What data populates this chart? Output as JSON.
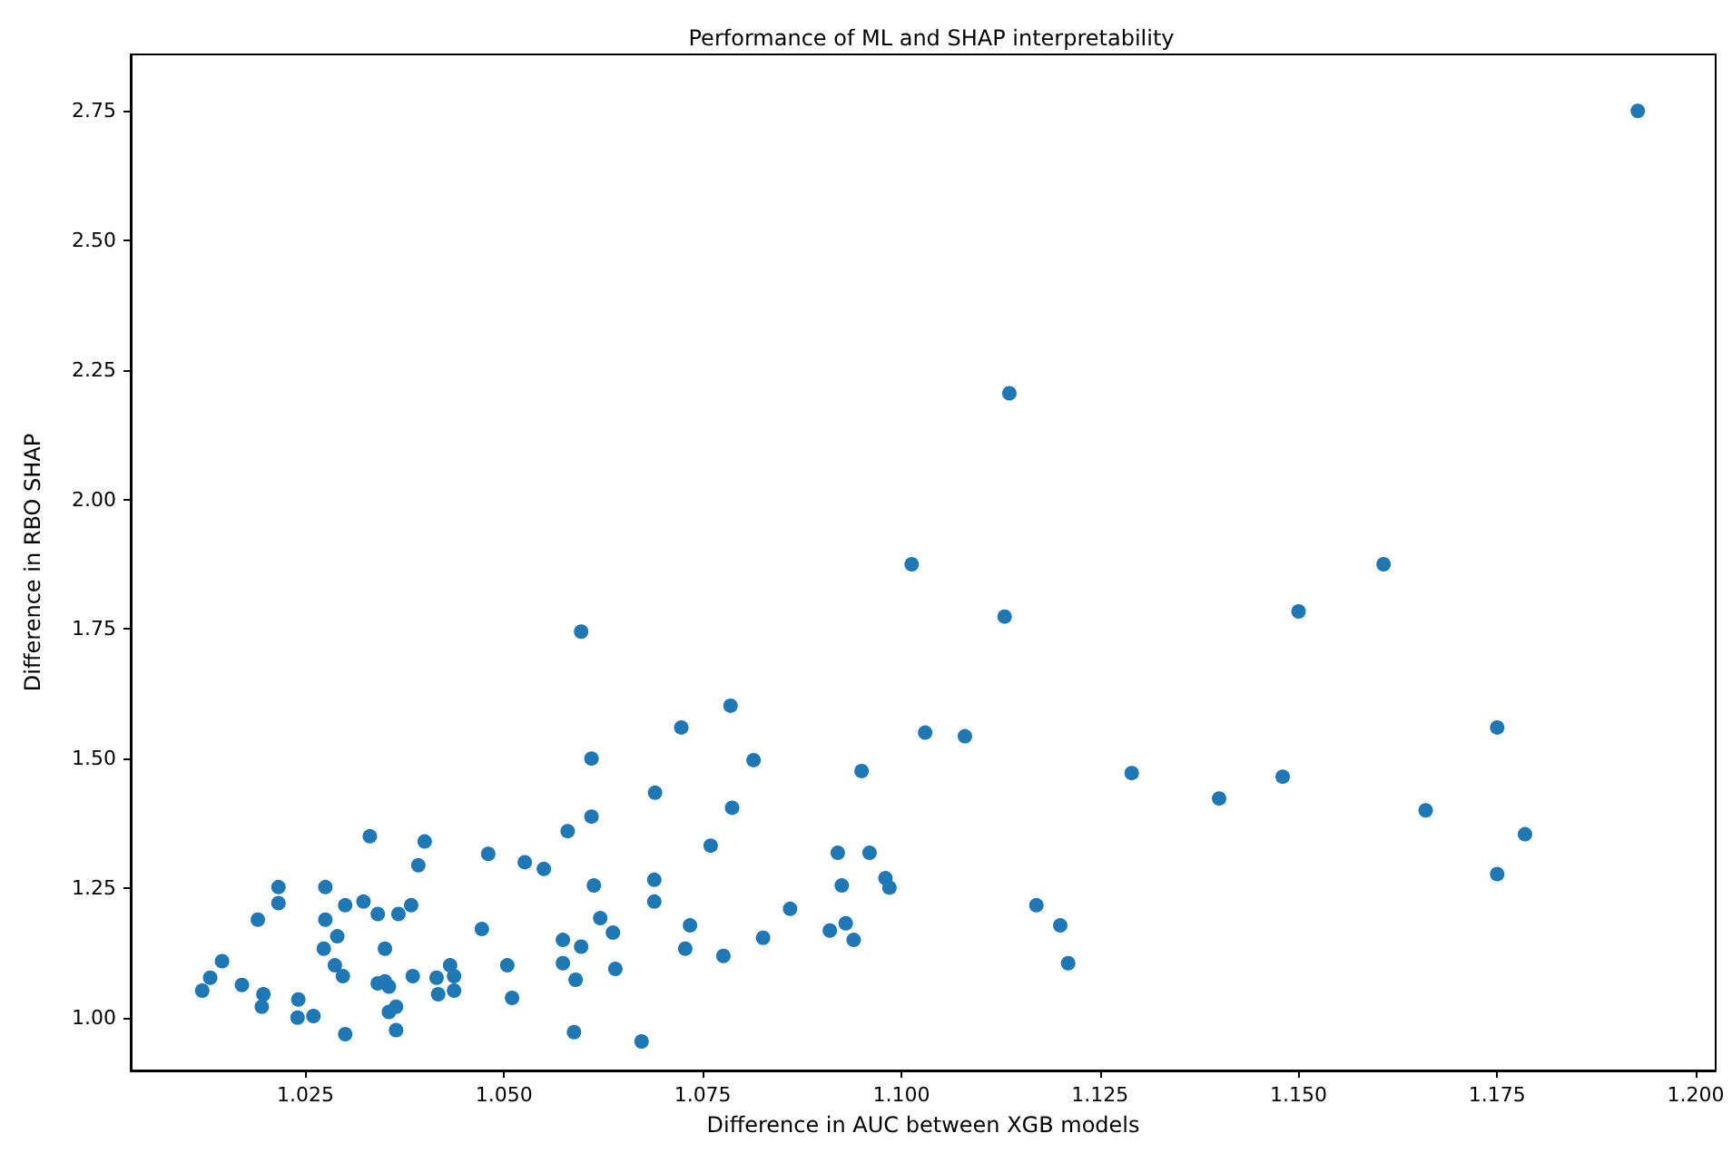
{
  "chart_data": {
    "type": "scatter",
    "title": "Performance of ML and SHAP interpretability",
    "xlabel": "Difference in AUC between XGB models",
    "ylabel": "Difference in RBO SHAP",
    "x": [
      1.012,
      1.013,
      1.0145,
      1.017,
      1.019,
      1.0197,
      1.0195,
      1.0216,
      1.0216,
      1.0241,
      1.024,
      1.026,
      1.0275,
      1.0275,
      1.029,
      1.0273,
      1.0287,
      1.0297,
      1.03,
      1.03,
      1.0323,
      1.0331,
      1.0341,
      1.0367,
      1.0383,
      1.035,
      1.0341,
      1.035,
      1.0355,
      1.0355,
      1.0364,
      1.0364,
      1.0385,
      1.0392,
      1.04,
      1.0415,
      1.0417,
      1.0432,
      1.0437,
      1.0437,
      1.0597,
      1.0723,
      1.0785,
      1.061,
      1.0814,
      1.069,
      1.0787,
      1.061,
      1.058,
      1.076,
      1.048,
      1.0526,
      1.055,
      1.0613,
      1.0689,
      1.0689,
      1.0621,
      1.0637,
      1.0472,
      1.0574,
      1.0597,
      1.0734,
      1.0728,
      1.0776,
      1.0826,
      1.086,
      1.0504,
      1.0574,
      1.059,
      1.064,
      1.051,
      1.0588,
      1.0673,
      1.1013,
      1.113,
      1.1607,
      1.15,
      1.103,
      1.108,
      1.095,
      1.129,
      1.14,
      1.148,
      1.175,
      1.166,
      1.1785,
      1.175,
      1.092,
      1.096,
      1.0925,
      1.098,
      1.0985,
      1.091,
      1.093,
      1.094,
      1.117,
      1.12,
      1.121,
      1.1136,
      1.1927
    ],
    "values": [
      1.052,
      1.077,
      1.109,
      1.063,
      1.189,
      1.045,
      1.021,
      1.252,
      1.221,
      1.035,
      1.0,
      1.003,
      1.252,
      1.189,
      1.157,
      1.133,
      1.101,
      1.08,
      0.968,
      1.217,
      1.224,
      1.35,
      1.2,
      1.2,
      1.217,
      1.133,
      1.066,
      1.07,
      1.06,
      1.011,
      1.021,
      0.976,
      1.08,
      1.294,
      1.34,
      1.077,
      1.045,
      1.101,
      1.08,
      1.052,
      1.745,
      1.56,
      1.602,
      1.5,
      1.497,
      1.434,
      1.405,
      1.388,
      1.36,
      1.332,
      1.316,
      1.3,
      1.287,
      1.255,
      1.266,
      1.224,
      1.192,
      1.164,
      1.171,
      1.15,
      1.137,
      1.178,
      1.133,
      1.119,
      1.154,
      1.21,
      1.101,
      1.105,
      1.073,
      1.094,
      1.038,
      0.972,
      0.954,
      1.875,
      1.774,
      1.875,
      1.784,
      1.55,
      1.543,
      1.476,
      1.472,
      1.423,
      1.465,
      1.56,
      1.4,
      1.354,
      1.277,
      1.318,
      1.318,
      1.255,
      1.269,
      1.251,
      1.168,
      1.182,
      1.15,
      1.217,
      1.178,
      1.105,
      2.205,
      2.75
    ],
    "color": "#1f77b4",
    "marker": "circle",
    "xlim": [
      1.003,
      1.2025
    ],
    "ylim": [
      0.898,
      2.859
    ],
    "xticks": [
      {
        "value": 1.025,
        "label": "1.025"
      },
      {
        "value": 1.05,
        "label": "1.050"
      },
      {
        "value": 1.075,
        "label": "1.075"
      },
      {
        "value": 1.1,
        "label": "1.100"
      },
      {
        "value": 1.125,
        "label": "1.125"
      },
      {
        "value": 1.15,
        "label": "1.150"
      },
      {
        "value": 1.175,
        "label": "1.175"
      },
      {
        "value": 1.2,
        "label": "1.200"
      }
    ],
    "yticks": [
      {
        "value": 1,
        "label": "1.00"
      },
      {
        "value": 1.25,
        "label": "1.25"
      },
      {
        "value": 1.5,
        "label": "1.50"
      },
      {
        "value": 1.75,
        "label": "1.75"
      },
      {
        "value": 2,
        "label": "2.00"
      },
      {
        "value": 2.25,
        "label": "2.25"
      },
      {
        "value": 2.5,
        "label": "2.50"
      },
      {
        "value": 2.75,
        "label": "2.75"
      }
    ],
    "grid": false
  }
}
